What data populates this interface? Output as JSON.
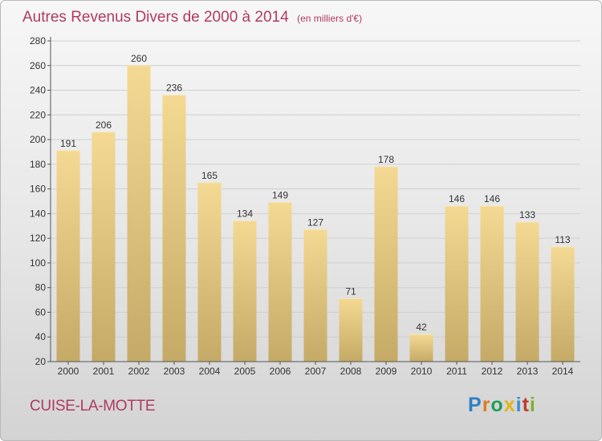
{
  "header": {
    "title": "Autres Revenus Divers de 2000 à 2014",
    "unit": "(en milliers d'€)"
  },
  "footer": {
    "city": "CUISE-LA-MOTTE",
    "logo": {
      "text": "Proxiti",
      "letters": [
        "P",
        "r",
        "o",
        "x",
        "i",
        "t",
        "i"
      ],
      "letter_colors": [
        "#2f7fc3",
        "#e07b25",
        "#1f9e5a",
        "#e0b51e",
        "#3b8fd0",
        "#c23c2e",
        "#7bb22e"
      ]
    }
  },
  "chart_data": {
    "type": "bar",
    "title": "Autres Revenus Divers de 2000 à 2014",
    "subtitle": "(en milliers d'€)",
    "categories": [
      "2000",
      "2001",
      "2002",
      "2003",
      "2004",
      "2005",
      "2006",
      "2007",
      "2008",
      "2009",
      "2010",
      "2011",
      "2012",
      "2013",
      "2014"
    ],
    "values": [
      191,
      206,
      260,
      236,
      165,
      134,
      149,
      127,
      71,
      178,
      42,
      146,
      146,
      133,
      113
    ],
    "ylim": [
      20,
      280
    ],
    "yticks": [
      20,
      40,
      60,
      80,
      100,
      120,
      140,
      160,
      180,
      200,
      220,
      240,
      260,
      280
    ],
    "grid": true,
    "data_labels": true,
    "colors": {
      "bar_light": "#f4d993",
      "bar_dark": "#c4aa66",
      "grid": "#cfcfcf",
      "axis": "#555555",
      "title": "#b03a63"
    }
  }
}
